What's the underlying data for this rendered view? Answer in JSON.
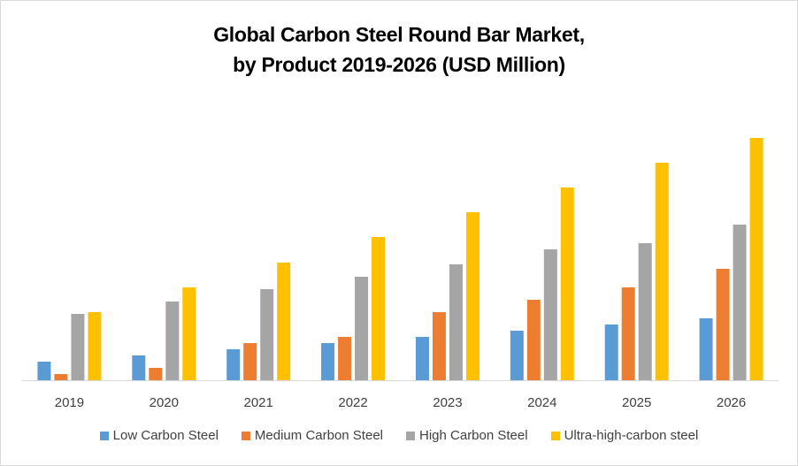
{
  "chart_data": {
    "type": "bar",
    "title_lines": [
      "Global Carbon Steel Round Bar Market,",
      "by Product 2019-2026 (USD Million)"
    ],
    "xlabel": "",
    "ylabel": "",
    "y_axis_visible": false,
    "value_units": "relative (no y-axis shown; values estimated in arbitrary units)",
    "categories": [
      "2019",
      "2020",
      "2021",
      "2022",
      "2023",
      "2024",
      "2025",
      "2026"
    ],
    "series": [
      {
        "name": "Low Carbon Steel",
        "color": "#5B9BD5",
        "values": [
          21,
          28,
          35,
          42,
          49,
          56,
          63,
          70
        ]
      },
      {
        "name": "Medium Carbon Steel",
        "color": "#ED7D31",
        "values": [
          7,
          14,
          42,
          49,
          77,
          91,
          105,
          126
        ]
      },
      {
        "name": "High Carbon Steel",
        "color": "#A5A5A5",
        "values": [
          75,
          89,
          103,
          117,
          131,
          148,
          155,
          176
        ]
      },
      {
        "name": "Ultra-high-carbon steel",
        "color": "#FFC000",
        "values": [
          77,
          105,
          133,
          162,
          190,
          218,
          246,
          274
        ]
      }
    ],
    "ylim": [
      0,
      300
    ],
    "grid": false,
    "legend_position": "bottom"
  }
}
